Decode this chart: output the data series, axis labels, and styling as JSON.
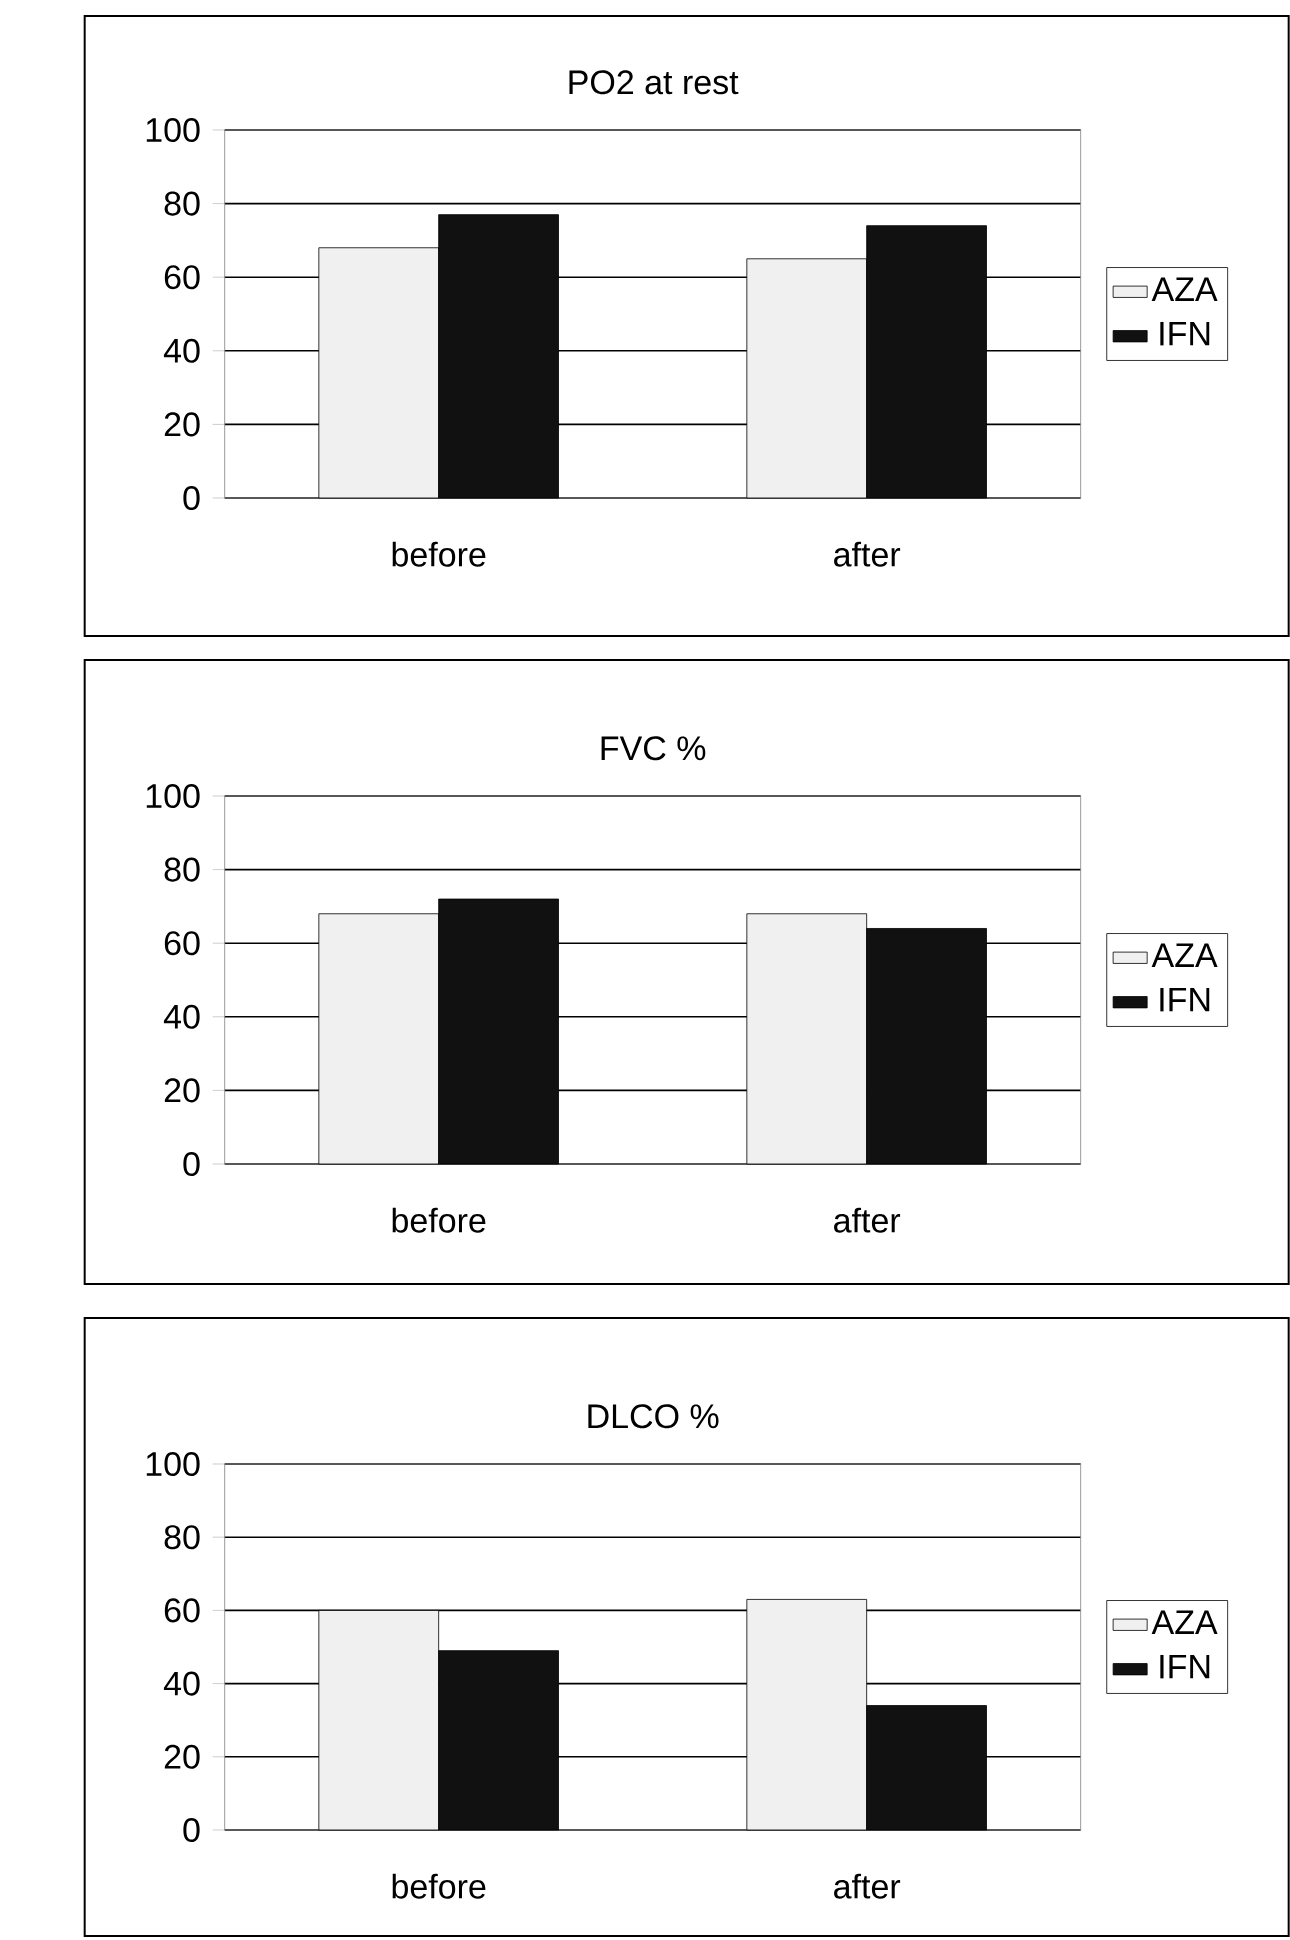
{
  "chart_data": [
    {
      "type": "bar",
      "title": "PO2 at rest",
      "categories": [
        "before",
        "after"
      ],
      "series": [
        {
          "name": "AZA",
          "color": "#f0f0f0",
          "values": [
            68,
            65
          ]
        },
        {
          "name": "IFN",
          "color": "#111111",
          "values": [
            77,
            74
          ]
        }
      ],
      "ylim": [
        0,
        100
      ],
      "yticks": [
        0,
        20,
        40,
        60,
        80,
        100
      ],
      "grid": "y",
      "legend": "right"
    },
    {
      "type": "bar",
      "title": "FVC %",
      "categories": [
        "before",
        "after"
      ],
      "series": [
        {
          "name": "AZA",
          "color": "#f0f0f0",
          "values": [
            68,
            68
          ]
        },
        {
          "name": "IFN",
          "color": "#111111",
          "values": [
            72,
            64
          ]
        }
      ],
      "ylim": [
        0,
        100
      ],
      "yticks": [
        0,
        20,
        40,
        60,
        80,
        100
      ],
      "grid": "y",
      "legend": "right"
    },
    {
      "type": "bar",
      "title": "DLCO %",
      "categories": [
        "before",
        "after"
      ],
      "series": [
        {
          "name": "AZA",
          "color": "#f0f0f0",
          "values": [
            60,
            63
          ]
        },
        {
          "name": "IFN",
          "color": "#111111",
          "values": [
            49,
            34
          ]
        }
      ],
      "ylim": [
        0,
        100
      ],
      "yticks": [
        0,
        20,
        40,
        60,
        80,
        100
      ],
      "grid": "y",
      "legend": "right"
    }
  ]
}
